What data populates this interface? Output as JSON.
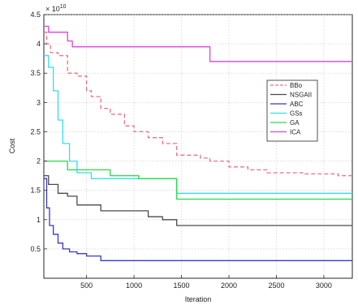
{
  "chart_data": {
    "type": "line",
    "title": "",
    "xlabel": "Iteration",
    "ylabel": "Cost",
    "y_exponent_label": "× 10",
    "y_exponent": "10",
    "xlim": [
      50,
      3300
    ],
    "ylim": [
      0,
      4.5
    ],
    "y_scale_factor": "1e10",
    "xticks": [
      500,
      1000,
      1500,
      2000,
      2500,
      3000
    ],
    "xtick_labels": [
      "500",
      "1000",
      "1500",
      "2000",
      "2500",
      "3000"
    ],
    "yticks": [
      0.5,
      1,
      1.5,
      2,
      2.5,
      3,
      3.5,
      4,
      4.5
    ],
    "ytick_labels": [
      "0.5",
      "1",
      "1.5",
      "2",
      "2.5",
      "3",
      "3.5",
      "4",
      "4.5"
    ],
    "grid": true,
    "legend_position": "right",
    "series": [
      {
        "name": "BBo",
        "color": "#e8737f",
        "dash": "dashed",
        "points": [
          [
            50,
            4.2
          ],
          [
            80,
            4.0
          ],
          [
            120,
            3.85
          ],
          [
            200,
            3.8
          ],
          [
            300,
            3.5
          ],
          [
            400,
            3.45
          ],
          [
            500,
            3.2
          ],
          [
            550,
            3.1
          ],
          [
            650,
            2.9
          ],
          [
            750,
            2.8
          ],
          [
            900,
            2.6
          ],
          [
            1000,
            2.5
          ],
          [
            1150,
            2.4
          ],
          [
            1300,
            2.3
          ],
          [
            1450,
            2.1
          ],
          [
            1700,
            2.05
          ],
          [
            1800,
            2.0
          ],
          [
            2000,
            1.9
          ],
          [
            2200,
            1.85
          ],
          [
            2400,
            1.8
          ],
          [
            2800,
            1.78
          ],
          [
            3150,
            1.75
          ],
          [
            3300,
            1.75
          ]
        ]
      },
      {
        "name": "NSGAII",
        "color": "#4a4a4a",
        "points": [
          [
            50,
            1.75
          ],
          [
            100,
            1.6
          ],
          [
            200,
            1.45
          ],
          [
            300,
            1.4
          ],
          [
            400,
            1.25
          ],
          [
            600,
            1.25
          ],
          [
            650,
            1.15
          ],
          [
            1000,
            1.15
          ],
          [
            1150,
            1.05
          ],
          [
            1300,
            1.0
          ],
          [
            1420,
            1.0
          ],
          [
            1450,
            0.9
          ],
          [
            3300,
            0.9
          ]
        ]
      },
      {
        "name": "ABC",
        "color": "#3838c8",
        "points": [
          [
            50,
            1.7
          ],
          [
            80,
            1.2
          ],
          [
            110,
            0.9
          ],
          [
            150,
            0.75
          ],
          [
            200,
            0.6
          ],
          [
            250,
            0.5
          ],
          [
            320,
            0.45
          ],
          [
            400,
            0.42
          ],
          [
            500,
            0.38
          ],
          [
            650,
            0.3
          ],
          [
            3300,
            0.3
          ]
        ]
      },
      {
        "name": "GSs",
        "color": "#33ddee",
        "points": [
          [
            50,
            3.8
          ],
          [
            100,
            3.6
          ],
          [
            150,
            3.2
          ],
          [
            200,
            2.7
          ],
          [
            250,
            2.3
          ],
          [
            320,
            2.0
          ],
          [
            400,
            1.8
          ],
          [
            550,
            1.7
          ],
          [
            1420,
            1.7
          ],
          [
            1450,
            1.45
          ],
          [
            3300,
            1.45
          ]
        ]
      },
      {
        "name": "GA",
        "color": "#22dd44",
        "points": [
          [
            50,
            2.0
          ],
          [
            200,
            2.0
          ],
          [
            300,
            1.85
          ],
          [
            700,
            1.85
          ],
          [
            750,
            1.75
          ],
          [
            1000,
            1.75
          ],
          [
            1050,
            1.7
          ],
          [
            1420,
            1.7
          ],
          [
            1450,
            1.35
          ],
          [
            3300,
            1.35
          ]
        ]
      },
      {
        "name": "ICA",
        "color": "#e040e0",
        "points": [
          [
            50,
            4.3
          ],
          [
            100,
            4.2
          ],
          [
            200,
            4.2
          ],
          [
            300,
            4.05
          ],
          [
            350,
            3.95
          ],
          [
            1780,
            3.95
          ],
          [
            1800,
            3.7
          ],
          [
            3300,
            3.7
          ]
        ]
      }
    ]
  }
}
